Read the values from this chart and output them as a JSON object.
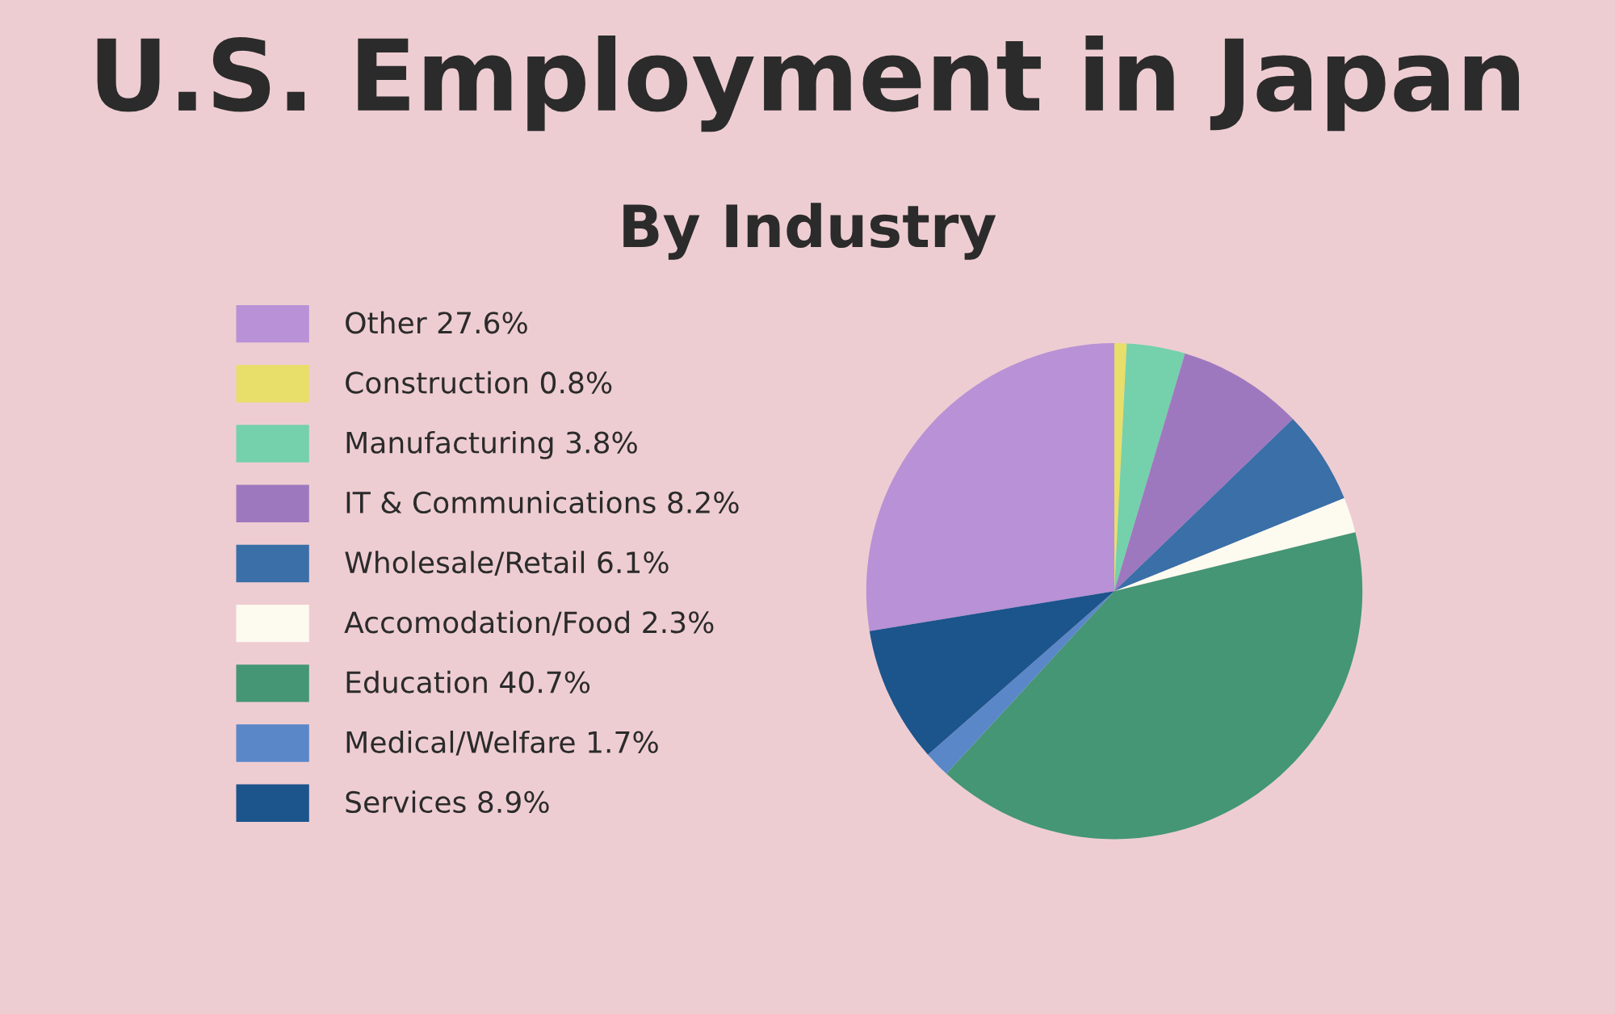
{
  "chart_data": {
    "type": "pie",
    "title": "U.S. Employment in Japan",
    "subtitle": "By Industry",
    "categories": [
      "Other 27.6%",
      "Construction 0.8%",
      "Manufacturing 3.8%",
      "IT & Communications 8.2%",
      "Wholesale/Retail 6.1%",
      "Accomodation/Food 2.3%",
      "Education 40.7%",
      "Medical/Welfare 1.7%",
      "Services 8.9%"
    ],
    "values": [
      27.6,
      0.8,
      3.8,
      8.2,
      6.1,
      2.3,
      40.7,
      1.7,
      8.9
    ],
    "colors": [
      "#b891d6",
      "#e8de6a",
      "#74d1ac",
      "#9e78bf",
      "#3a6fa8",
      "#fdfaf0",
      "#449674",
      "#5a87c8",
      "#1c548c"
    ],
    "legend": "left"
  }
}
